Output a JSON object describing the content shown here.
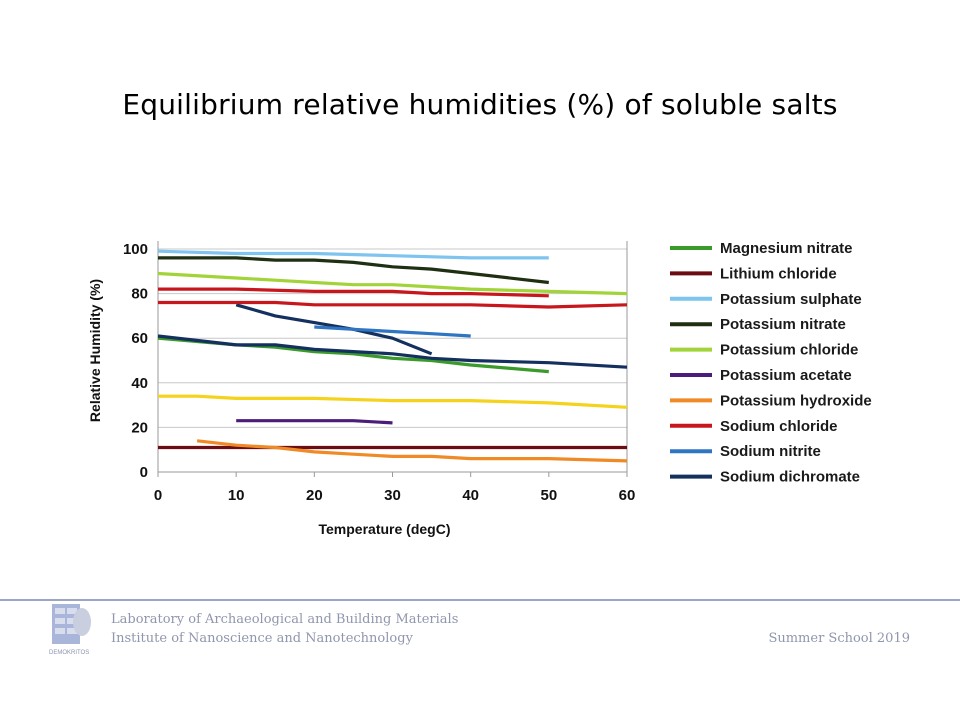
{
  "slide": {
    "title": "Equilibrium relative humidities (%) of soluble salts"
  },
  "footer": {
    "line1": "Laboratory of Archaeological and Building Materials",
    "line2": "Institute of Nanoscience and Nanotechnology",
    "right": "Summer School 2019",
    "logo_icon": "democritos-logo-icon",
    "logo_caption": "DEMOKRITOS"
  },
  "chart_data": {
    "type": "line",
    "title": "",
    "xlabel": "Temperature (degC)",
    "ylabel": "Relative Humidity (%)",
    "xlim": [
      0,
      60
    ],
    "ylim": [
      0,
      100
    ],
    "x_ticks": [
      "0",
      "10",
      "20",
      "30",
      "40",
      "50",
      "60"
    ],
    "y_ticks": [
      "0",
      "20",
      "40",
      "60",
      "80",
      "100"
    ],
    "grid": "horizontal",
    "legend_position": "right",
    "series": [
      {
        "name": "Magnesium nitrate",
        "color": "#3a9a2a",
        "points": [
          [
            0,
            60
          ],
          [
            10,
            57
          ],
          [
            15,
            56
          ],
          [
            20,
            54
          ],
          [
            25,
            53
          ],
          [
            30,
            51
          ],
          [
            35,
            50
          ],
          [
            40,
            48
          ],
          [
            50,
            45
          ]
        ]
      },
      {
        "name": "Lithium chloride",
        "color": "#6b0d12",
        "points": [
          [
            0,
            11
          ],
          [
            10,
            11
          ],
          [
            20,
            11
          ],
          [
            30,
            11
          ],
          [
            40,
            11
          ],
          [
            50,
            11
          ],
          [
            60,
            11
          ]
        ]
      },
      {
        "name": "Potassium sulphate",
        "color": "#7fc4ef",
        "points": [
          [
            0,
            99
          ],
          [
            10,
            98
          ],
          [
            20,
            98
          ],
          [
            30,
            97
          ],
          [
            40,
            96
          ],
          [
            50,
            96
          ]
        ]
      },
      {
        "name": "Potassium nitrate",
        "color": "#1f2f12",
        "points": [
          [
            0,
            96
          ],
          [
            10,
            96
          ],
          [
            15,
            95
          ],
          [
            20,
            95
          ],
          [
            25,
            94
          ],
          [
            30,
            92
          ],
          [
            35,
            91
          ],
          [
            40,
            89
          ],
          [
            50,
            85
          ]
        ]
      },
      {
        "name": "Potassium chloride",
        "color": "#a2d43a",
        "points": [
          [
            0,
            89
          ],
          [
            10,
            87
          ],
          [
            15,
            86
          ],
          [
            20,
            85
          ],
          [
            25,
            84
          ],
          [
            30,
            84
          ],
          [
            35,
            83
          ],
          [
            40,
            82
          ],
          [
            50,
            81
          ],
          [
            60,
            80
          ]
        ]
      },
      {
        "name": "Potassium acetate",
        "color": "#4b1c7a",
        "points": [
          [
            10,
            23
          ],
          [
            15,
            23
          ],
          [
            20,
            23
          ],
          [
            25,
            23
          ],
          [
            30,
            22
          ]
        ]
      },
      {
        "name": "Potassium hydroxide",
        "color": "#f08a26",
        "points": [
          [
            5,
            14
          ],
          [
            10,
            12
          ],
          [
            15,
            11
          ],
          [
            20,
            9
          ],
          [
            25,
            8
          ],
          [
            30,
            7
          ],
          [
            35,
            7
          ],
          [
            40,
            6
          ],
          [
            50,
            6
          ],
          [
            60,
            5
          ]
        ]
      },
      {
        "name": "Sodium chloride",
        "color": "#c8161d",
        "points": [
          [
            0,
            76
          ],
          [
            10,
            76
          ],
          [
            15,
            76
          ],
          [
            20,
            75
          ],
          [
            25,
            75
          ],
          [
            30,
            75
          ],
          [
            40,
            75
          ],
          [
            50,
            74
          ],
          [
            60,
            75
          ]
        ]
      },
      {
        "name": "Sodium nitrite",
        "color": "#2f75c2",
        "points": [
          [
            20,
            65
          ],
          [
            25,
            64
          ],
          [
            30,
            63
          ],
          [
            35,
            62
          ],
          [
            40,
            61
          ]
        ]
      },
      {
        "name": "Sodium dichromate",
        "color": "#14305f",
        "points": [
          [
            0,
            61
          ],
          [
            10,
            57
          ],
          [
            15,
            57
          ],
          [
            20,
            55
          ],
          [
            25,
            54
          ],
          [
            30,
            53
          ],
          [
            35,
            51
          ],
          [
            40,
            50
          ],
          [
            50,
            49
          ],
          [
            60,
            47
          ]
        ]
      }
    ],
    "extra_lines": [
      {
        "color": "#c8161d",
        "points": [
          [
            0,
            82
          ],
          [
            10,
            82
          ],
          [
            20,
            81
          ],
          [
            30,
            81
          ],
          [
            35,
            80
          ],
          [
            40,
            80
          ],
          [
            50,
            79
          ]
        ]
      },
      {
        "color": "#f5d21b",
        "points": [
          [
            0,
            34
          ],
          [
            5,
            34
          ],
          [
            10,
            33
          ],
          [
            20,
            33
          ],
          [
            30,
            32
          ],
          [
            40,
            32
          ],
          [
            50,
            31
          ],
          [
            60,
            29
          ]
        ]
      },
      {
        "color": "#14305f",
        "points": [
          [
            10,
            75
          ],
          [
            15,
            70
          ],
          [
            20,
            67
          ],
          [
            25,
            64
          ],
          [
            30,
            60
          ],
          [
            35,
            53
          ]
        ]
      }
    ]
  }
}
